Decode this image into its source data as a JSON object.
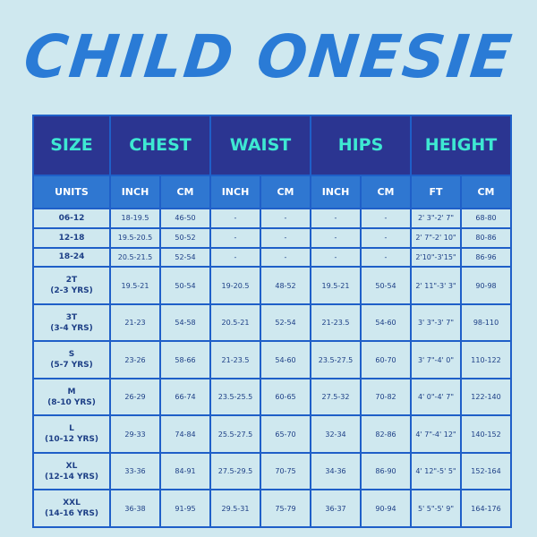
{
  "title": "CHILD ONESIE",
  "headers": [
    "SIZE",
    "CHEST",
    "WAIST",
    "HIPS",
    "HEIGHT"
  ],
  "units": [
    "UNITS",
    "INCH",
    "CM",
    "INCH",
    "CM",
    "INCH",
    "CM",
    "FT",
    "CM"
  ],
  "rows": [
    {
      "size": "06-12",
      "size2": "",
      "cells": [
        "18-19.5",
        "46-50",
        "-",
        "-",
        "-",
        "-",
        "2' 3\"-2' 7\"",
        "68-80"
      ]
    },
    {
      "size": "12-18",
      "size2": "",
      "cells": [
        "19.5-20.5",
        "50-52",
        "-",
        "-",
        "-",
        "-",
        "2' 7\"-2' 10\"",
        "80-86"
      ]
    },
    {
      "size": "18-24",
      "size2": "",
      "cells": [
        "20.5-21.5",
        "52-54",
        "-",
        "-",
        "-",
        "-",
        "2'10\"-3'15\"",
        "86-96"
      ]
    },
    {
      "size": "2T",
      "size2": "(2-3 YRS)",
      "cells": [
        "19.5-21",
        "50-54",
        "19-20.5",
        "48-52",
        "19.5-21",
        "50-54",
        "2' 11\"-3' 3\"",
        "90-98"
      ]
    },
    {
      "size": "3T",
      "size2": "(3-4 YRS)",
      "cells": [
        "21-23",
        "54-58",
        "20.5-21",
        "52-54",
        "21-23.5",
        "54-60",
        "3' 3\"-3' 7\"",
        "98-110"
      ]
    },
    {
      "size": "S",
      "size2": "(5-7 YRS)",
      "cells": [
        "23-26",
        "58-66",
        "21-23.5",
        "54-60",
        "23.5-27.5",
        "60-70",
        "3' 7\"-4' 0\"",
        "110-122"
      ]
    },
    {
      "size": "M",
      "size2": "(8-10 YRS)",
      "cells": [
        "26-29",
        "66-74",
        "23.5-25.5",
        "60-65",
        "27.5-32",
        "70-82",
        "4' 0\"-4' 7\"",
        "122-140"
      ]
    },
    {
      "size": "L",
      "size2": "(10-12 YRS)",
      "cells": [
        "29-33",
        "74-84",
        "25.5-27.5",
        "65-70",
        "32-34",
        "82-86",
        "4' 7\"-4' 12\"",
        "140-152"
      ]
    },
    {
      "size": "XL",
      "size2": "(12-14 YRS)",
      "cells": [
        "33-36",
        "84-91",
        "27.5-29.5",
        "70-75",
        "34-36",
        "86-90",
        "4' 12\"-5' 5\"",
        "152-164"
      ]
    },
    {
      "size": "XXL",
      "size2": "(14-16 YRS)",
      "cells": [
        "36-38",
        "91-95",
        "29.5-31",
        "75-79",
        "36-37",
        "90-94",
        "5' 5\"-5' 9\"",
        "164-176"
      ]
    }
  ],
  "colors": {
    "background": "#cfe8ef",
    "title": "#2a7bd6",
    "header_bg": "#2b3591",
    "header_text": "#3ee8d2",
    "units_bg": "#2f77d1",
    "grid": "#1f5fc8"
  }
}
